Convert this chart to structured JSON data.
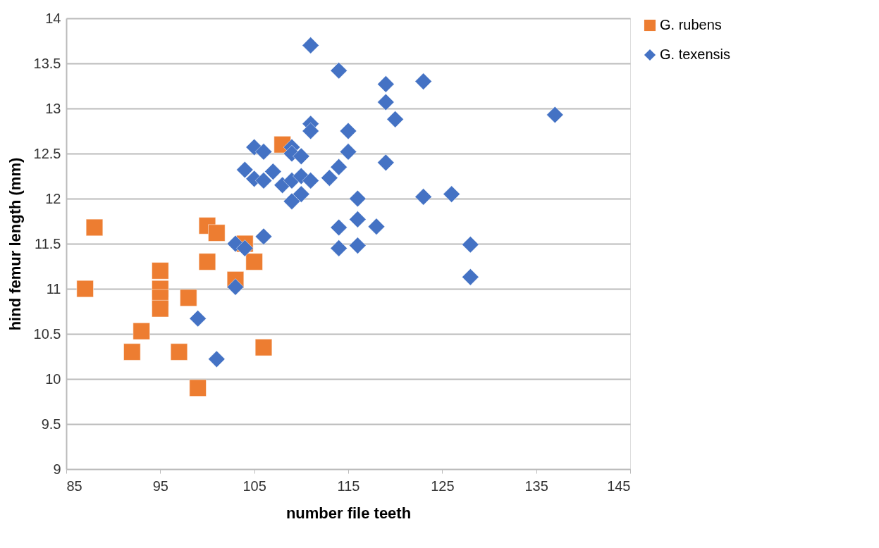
{
  "chart_data": {
    "type": "scatter",
    "xlabel": "number file teeth",
    "ylabel": "hind femur length (mm)",
    "xlim": [
      85,
      145
    ],
    "xticks": [
      85,
      95,
      105,
      115,
      125,
      135,
      145
    ],
    "ylim": [
      9,
      14
    ],
    "yticks": [
      9,
      9.5,
      10,
      10.5,
      11,
      11.5,
      12,
      12.5,
      13,
      13.5,
      14
    ],
    "grid": "y",
    "legend": "right",
    "series": [
      {
        "name": "G. rubens",
        "color": "#ed7d31",
        "marker": "square",
        "x": [
          87,
          88,
          92,
          93,
          95,
          95,
          95,
          95,
          97,
          98,
          99,
          100,
          101,
          100,
          103,
          104,
          105,
          106,
          108
        ],
        "values": [
          11.0,
          11.68,
          10.3,
          10.53,
          11.2,
          11.0,
          10.9,
          10.78,
          10.3,
          10.9,
          9.9,
          11.7,
          11.62,
          11.3,
          11.1,
          11.5,
          11.3,
          10.35,
          12.6
        ]
      },
      {
        "name": "G. texensis",
        "color": "#4472c4",
        "marker": "diamond",
        "x": [
          111,
          114,
          119,
          123,
          119,
          120,
          137,
          111,
          111,
          115,
          115,
          119,
          105,
          106,
          109,
          109,
          104,
          107,
          105,
          106,
          108,
          109,
          110,
          110,
          111,
          113,
          114,
          109,
          110,
          116,
          123,
          126,
          114,
          116,
          118,
          114,
          116,
          128,
          128,
          106,
          103,
          104,
          103,
          99,
          101
        ],
        "values": [
          13.7,
          13.42,
          13.27,
          13.3,
          13.07,
          12.88,
          12.93,
          12.83,
          12.75,
          12.75,
          12.52,
          12.4,
          12.57,
          12.52,
          12.57,
          12.5,
          12.32,
          12.3,
          12.22,
          12.2,
          12.15,
          12.2,
          12.47,
          12.25,
          12.2,
          12.23,
          12.35,
          11.97,
          12.05,
          12.0,
          12.02,
          12.05,
          11.68,
          11.77,
          11.69,
          11.45,
          11.48,
          11.49,
          11.13,
          11.58,
          11.5,
          11.45,
          11.02,
          10.67,
          10.22
        ]
      }
    ]
  }
}
